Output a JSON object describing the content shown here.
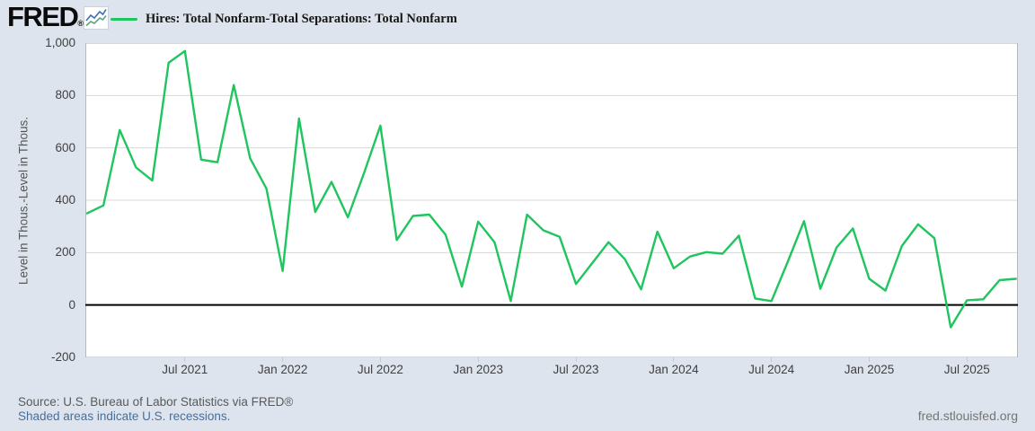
{
  "header": {
    "logo_text": "FRED",
    "registered_mark": "®",
    "legend": {
      "swatch_color": "#1fc55e",
      "label": "Hires: Total Nonfarm-Total Separations: Total Nonfarm"
    }
  },
  "footer": {
    "source_text": "Source: U.S. Bureau of Labor Statistics via FRED®",
    "recession_note": "Shaded areas indicate U.S. recessions.",
    "site_link": "fred.stlouisfed.org"
  },
  "chart_data": {
    "type": "line",
    "title": "Hires: Total Nonfarm-Total Separations: Total Nonfarm",
    "ylabel": "Level in Thous.-Level in Thous.",
    "series_color": "#1fc55e",
    "grid": true,
    "zero_line": true,
    "legend_position": "top-left",
    "ylim": [
      -200,
      1000
    ],
    "y_ticks": [
      1000,
      800,
      600,
      400,
      200,
      0,
      -200
    ],
    "y_tick_labels": [
      "1,000",
      "800",
      "600",
      "400",
      "200",
      "0",
      "-200"
    ],
    "x_ticks": [
      {
        "index": 6,
        "label": "Jul 2021"
      },
      {
        "index": 12,
        "label": "Jan 2022"
      },
      {
        "index": 18,
        "label": "Jul 2022"
      },
      {
        "index": 24,
        "label": "Jan 2023"
      },
      {
        "index": 30,
        "label": "Jul 2023"
      },
      {
        "index": 36,
        "label": "Jan 2024"
      },
      {
        "index": 42,
        "label": "Jul 2024"
      },
      {
        "index": 48,
        "label": "Jan 2025"
      },
      {
        "index": 54,
        "label": "Jul 2025"
      }
    ],
    "x": [
      "Jan 2021",
      "Feb 2021",
      "Mar 2021",
      "Apr 2021",
      "May 2021",
      "Jun 2021",
      "Jul 2021",
      "Aug 2021",
      "Sep 2021",
      "Oct 2021",
      "Nov 2021",
      "Dec 2021",
      "Jan 2022",
      "Feb 2022",
      "Mar 2022",
      "Apr 2022",
      "May 2022",
      "Jun 2022",
      "Jul 2022",
      "Aug 2022",
      "Sep 2022",
      "Oct 2022",
      "Nov 2022",
      "Dec 2022",
      "Jan 2023",
      "Feb 2023",
      "Mar 2023",
      "Apr 2023",
      "May 2023",
      "Jun 2023",
      "Jul 2023",
      "Aug 2023",
      "Sep 2023",
      "Oct 2023",
      "Nov 2023",
      "Dec 2023",
      "Jan 2024",
      "Feb 2024",
      "Mar 2024",
      "Apr 2024",
      "May 2024",
      "Jun 2024",
      "Jul 2024",
      "Aug 2024",
      "Sep 2024",
      "Oct 2024",
      "Nov 2024",
      "Dec 2024",
      "Jan 2025",
      "Feb 2025",
      "Mar 2025",
      "Apr 2025",
      "May 2025",
      "Jun 2025",
      "Jul 2025",
      "Aug 2025",
      "Sep 2025",
      "Oct 2025"
    ],
    "values": [
      350,
      380,
      668,
      525,
      475,
      925,
      970,
      555,
      545,
      840,
      560,
      445,
      130,
      712,
      355,
      470,
      335,
      505,
      685,
      248,
      340,
      345,
      268,
      70,
      318,
      240,
      15,
      345,
      285,
      260,
      80,
      160,
      240,
      175,
      60,
      280,
      140,
      185,
      202,
      196,
      265,
      25,
      15,
      165,
      320,
      62,
      220,
      292,
      100,
      55,
      225,
      308,
      255,
      -85,
      18,
      22,
      95,
      100
    ]
  }
}
